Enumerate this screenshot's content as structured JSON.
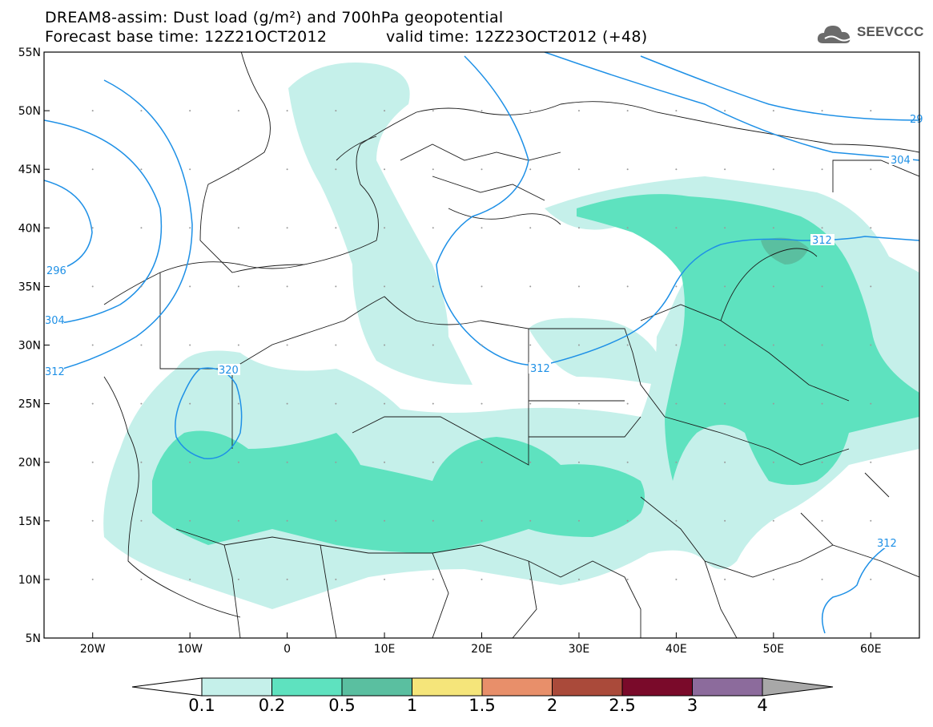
{
  "header": {
    "title_line1": "DREAM8-assim: Dust load (g/m²) and 700hPa geopotential",
    "title_line2": "Forecast base time: 12Z21OCT2012",
    "valid_time": "valid time: 12Z23OCT2012 (+48)",
    "logo_text": "SEEVCCC"
  },
  "map": {
    "lon_ticks": [
      "20W",
      "10W",
      "0",
      "10E",
      "20E",
      "30E",
      "40E",
      "50E",
      "60E"
    ],
    "lat_ticks": [
      "55N",
      "50N",
      "45N",
      "40N",
      "35N",
      "30N",
      "25N",
      "20N",
      "15N",
      "10N",
      "5N"
    ],
    "lon_range": [
      -25,
      65
    ],
    "lat_range": [
      5,
      55
    ],
    "contour_labels": [
      "296",
      "304",
      "312",
      "320",
      "312",
      "304",
      "312",
      "312",
      "29"
    ],
    "line_color": "#1e90e6"
  },
  "colorbar": {
    "labels": [
      "0.1",
      "0.2",
      "0.5",
      "1",
      "1.5",
      "2",
      "2.5",
      "3",
      "4"
    ],
    "colors": [
      "#c5f0ea",
      "#5ee2bf",
      "#5abfa0",
      "#f5e57a",
      "#e88f6a",
      "#aa4a3a",
      "#7a0a2a",
      "#8c6b9c",
      "#a8a8a8"
    ]
  }
}
